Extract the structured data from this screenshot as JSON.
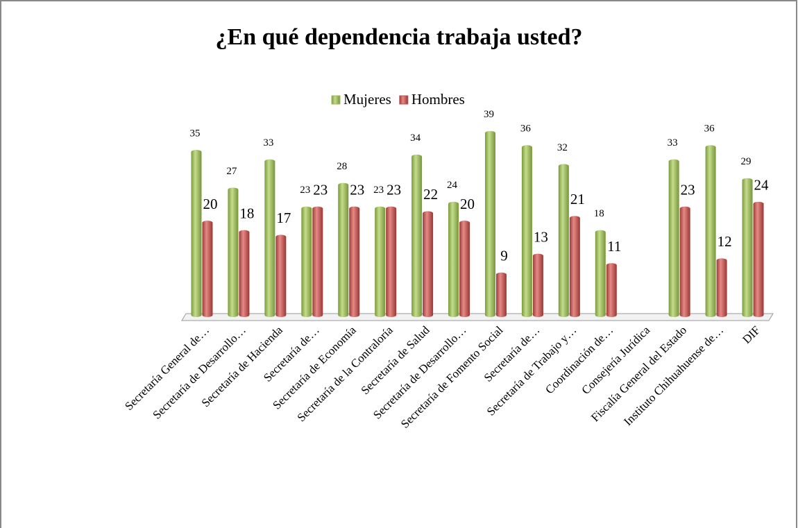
{
  "chart_data": {
    "type": "bar",
    "title": "¿En qué dependencia trabaja usted?",
    "categories": [
      "Secretaría General de…",
      "Secretaría de Desarrollo…",
      "Secretaría de Hacienda",
      "Secretaría de…",
      "Secretaría de Economía",
      "Secretaría de la Contraloría",
      "Secretaría de Salud",
      "Secretaría de Desarrollo…",
      "Secretaría de Fomento Social",
      "Secretaría de…",
      "Secretaría de Trabajo y…",
      "Coordinación de…",
      "Consejería Jurídica",
      "Fiscalía General del Estado",
      "Instituto Chihuahuense de…",
      "DIF"
    ],
    "series": [
      {
        "name": "Mujeres",
        "color": "#9bbb59",
        "values": [
          35,
          27,
          33,
          23,
          28,
          23,
          34,
          24,
          39,
          36,
          32,
          18,
          null,
          33,
          36,
          29
        ]
      },
      {
        "name": "Hombres",
        "color": "#c0504d",
        "values": [
          20,
          18,
          17,
          23,
          23,
          23,
          22,
          20,
          9,
          13,
          21,
          11,
          null,
          23,
          12,
          24
        ]
      }
    ],
    "legend": "top"
  }
}
